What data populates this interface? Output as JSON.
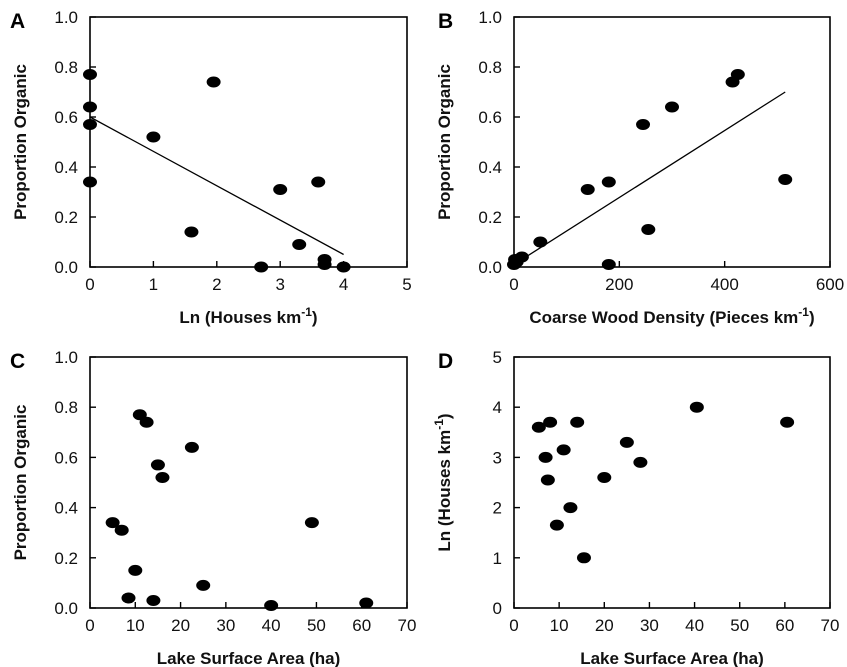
{
  "chart_data": [
    {
      "panel_label": "A",
      "type": "scatter",
      "xlabel": "Ln (Houses km",
      "xlabel_sup": "-1",
      "xlabel_end": ")",
      "ylabel": "Proportion Organic",
      "xlim": [
        0,
        5
      ],
      "ylim": [
        0,
        1.0
      ],
      "xticks": [
        "0",
        "1",
        "2",
        "3",
        "4",
        "5"
      ],
      "yticks": [
        "0.0",
        "0.2",
        "0.4",
        "0.6",
        "0.8",
        "1.0"
      ],
      "points": [
        {
          "x": 0.0,
          "y": 0.77
        },
        {
          "x": 0.0,
          "y": 0.64
        },
        {
          "x": 0.0,
          "y": 0.57
        },
        {
          "x": 0.0,
          "y": 0.34
        },
        {
          "x": 1.0,
          "y": 0.52
        },
        {
          "x": 1.6,
          "y": 0.14
        },
        {
          "x": 1.95,
          "y": 0.74
        },
        {
          "x": 2.7,
          "y": 0.0
        },
        {
          "x": 3.0,
          "y": 0.31
        },
        {
          "x": 3.3,
          "y": 0.09
        },
        {
          "x": 3.6,
          "y": 0.34
        },
        {
          "x": 3.7,
          "y": 0.03
        },
        {
          "x": 3.7,
          "y": 0.01
        },
        {
          "x": 4.0,
          "y": 0.0
        }
      ],
      "trend_line": [
        {
          "x": 0,
          "y": 0.6
        },
        {
          "x": 4.0,
          "y": 0.05
        }
      ]
    },
    {
      "panel_label": "B",
      "type": "scatter",
      "xlabel": "Coarse Wood Density (Pieces km",
      "xlabel_sup": "-1",
      "xlabel_end": ")",
      "ylabel": "Proportion Organic",
      "xlim": [
        0,
        600
      ],
      "ylim": [
        0,
        1.0
      ],
      "xticks": [
        "0",
        "200",
        "400",
        "600"
      ],
      "yticks": [
        "0.0",
        "0.2",
        "0.4",
        "0.6",
        "0.8",
        "1.0"
      ],
      "points": [
        {
          "x": 0,
          "y": 0.01
        },
        {
          "x": 2,
          "y": 0.03
        },
        {
          "x": 5,
          "y": 0.02
        },
        {
          "x": 15,
          "y": 0.04
        },
        {
          "x": 50,
          "y": 0.1
        },
        {
          "x": 140,
          "y": 0.31
        },
        {
          "x": 180,
          "y": 0.34
        },
        {
          "x": 180,
          "y": 0.01
        },
        {
          "x": 245,
          "y": 0.57
        },
        {
          "x": 255,
          "y": 0.15
        },
        {
          "x": 300,
          "y": 0.64
        },
        {
          "x": 415,
          "y": 0.74
        },
        {
          "x": 425,
          "y": 0.77
        },
        {
          "x": 515,
          "y": 0.35
        }
      ],
      "trend_line": [
        {
          "x": 0,
          "y": 0.01
        },
        {
          "x": 515,
          "y": 0.7
        }
      ]
    },
    {
      "panel_label": "C",
      "type": "scatter",
      "xlabel": "Lake Surface Area (ha)",
      "xlabel_sup": "",
      "xlabel_end": "",
      "ylabel": "Proportion Organic",
      "xlim": [
        0,
        70
      ],
      "ylim": [
        0,
        1.0
      ],
      "xticks": [
        "0",
        "10",
        "20",
        "30",
        "40",
        "50",
        "60",
        "70"
      ],
      "yticks": [
        "0.0",
        "0.2",
        "0.4",
        "0.6",
        "0.8",
        "1.0"
      ],
      "points": [
        {
          "x": 5,
          "y": 0.34
        },
        {
          "x": 7,
          "y": 0.31
        },
        {
          "x": 8.5,
          "y": 0.04
        },
        {
          "x": 10,
          "y": 0.15
        },
        {
          "x": 11,
          "y": 0.77
        },
        {
          "x": 12.5,
          "y": 0.74
        },
        {
          "x": 14,
          "y": 0.03
        },
        {
          "x": 15,
          "y": 0.57
        },
        {
          "x": 16,
          "y": 0.52
        },
        {
          "x": 22.5,
          "y": 0.64
        },
        {
          "x": 25,
          "y": 0.09
        },
        {
          "x": 40,
          "y": 0.01
        },
        {
          "x": 49,
          "y": 0.34
        },
        {
          "x": 61,
          "y": 0.02
        }
      ],
      "trend_line": null
    },
    {
      "panel_label": "D",
      "type": "scatter",
      "xlabel": "Lake Surface Area (ha)",
      "xlabel_sup": "",
      "xlabel_end": "",
      "ylabel": "Ln (Houses km",
      "ylabel_sup": "-1",
      "ylabel_end": ")",
      "xlim": [
        0,
        70
      ],
      "ylim": [
        0,
        5
      ],
      "xticks": [
        "0",
        "10",
        "20",
        "30",
        "40",
        "50",
        "60",
        "70"
      ],
      "yticks": [
        "0",
        "1",
        "2",
        "3",
        "4",
        "5"
      ],
      "points": [
        {
          "x": 5.5,
          "y": 3.6
        },
        {
          "x": 7,
          "y": 3.0
        },
        {
          "x": 7.5,
          "y": 2.55
        },
        {
          "x": 8,
          "y": 3.7
        },
        {
          "x": 9.5,
          "y": 1.65
        },
        {
          "x": 11,
          "y": 3.15
        },
        {
          "x": 12.5,
          "y": 2.0
        },
        {
          "x": 14,
          "y": 3.7
        },
        {
          "x": 15.5,
          "y": 1.0
        },
        {
          "x": 20,
          "y": 2.6
        },
        {
          "x": 25,
          "y": 3.3
        },
        {
          "x": 28,
          "y": 2.9
        },
        {
          "x": 40.5,
          "y": 4.0
        },
        {
          "x": 60.5,
          "y": 3.7
        }
      ],
      "trend_line": null
    }
  ]
}
